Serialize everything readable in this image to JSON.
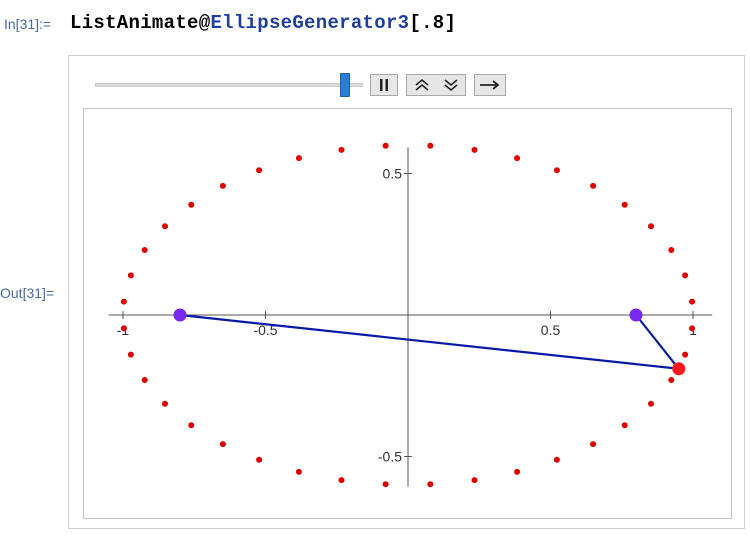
{
  "cell": {
    "in_label": "In[31]:=",
    "out_label": "Out[31]=",
    "code_func": "ListAnimate@",
    "code_gen": "EllipseGenerator3",
    "code_arg": "[.8]"
  },
  "controls": {
    "slider_value": 0.92,
    "buttons": [
      "pause-icon",
      "faster-icon",
      "slower-icon",
      "direction-forward-icon"
    ]
  },
  "plot": {
    "x_ticks": [
      {
        "value": -1,
        "label": "-1"
      },
      {
        "value": -0.5,
        "label": "-0.5"
      },
      {
        "value": 0.5,
        "label": "0.5"
      },
      {
        "value": 1,
        "label": "1"
      }
    ],
    "y_ticks": [
      {
        "value": 0.5,
        "label": "0.5"
      },
      {
        "value": -0.5,
        "label": "-0.5"
      }
    ],
    "xlim": [
      -1.05,
      1.05
    ],
    "ylim": [
      -0.6,
      0.6
    ],
    "ellipse": {
      "a": 1.0,
      "b": 0.6,
      "n_points": 40
    },
    "foci": [
      [
        -0.8,
        0.0
      ],
      [
        0.8,
        0.0
      ]
    ],
    "moving_point": [
      0.95,
      -0.19
    ],
    "colors": {
      "points": "#e00000",
      "moving_point": "#ff1a1a",
      "foci": "#7a28f0",
      "lines": "#0a1aa8",
      "axes": "#555555"
    }
  }
}
